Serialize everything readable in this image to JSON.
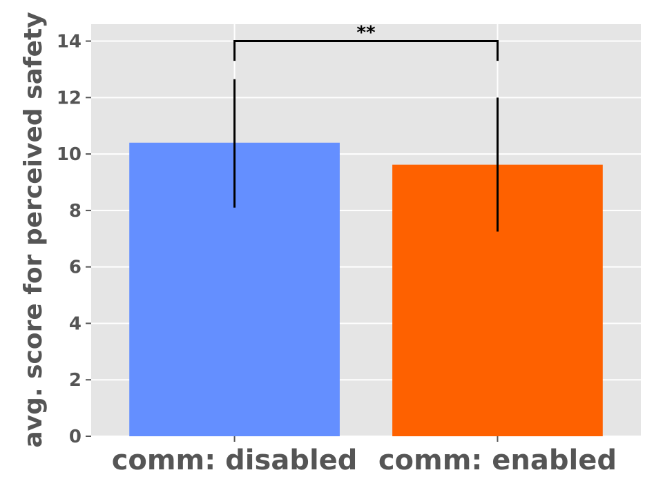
{
  "chart_data": {
    "type": "bar",
    "title": "",
    "xlabel": "",
    "ylabel": "avg. score for perceived safety",
    "categories": [
      "comm: disabled",
      "comm: enabled"
    ],
    "values": [
      10.4,
      9.62
    ],
    "error_low": [
      8.1,
      7.25
    ],
    "error_high": [
      12.65,
      12.0
    ],
    "colors": [
      "#648FFF",
      "#FE6100"
    ],
    "ylim": [
      0,
      14.6
    ],
    "yticks": [
      0,
      2,
      4,
      6,
      8,
      10,
      12,
      14
    ],
    "grid": true,
    "significance": {
      "label": "**",
      "between": [
        0,
        1
      ],
      "y": 14.0,
      "drop": 13.3
    }
  }
}
